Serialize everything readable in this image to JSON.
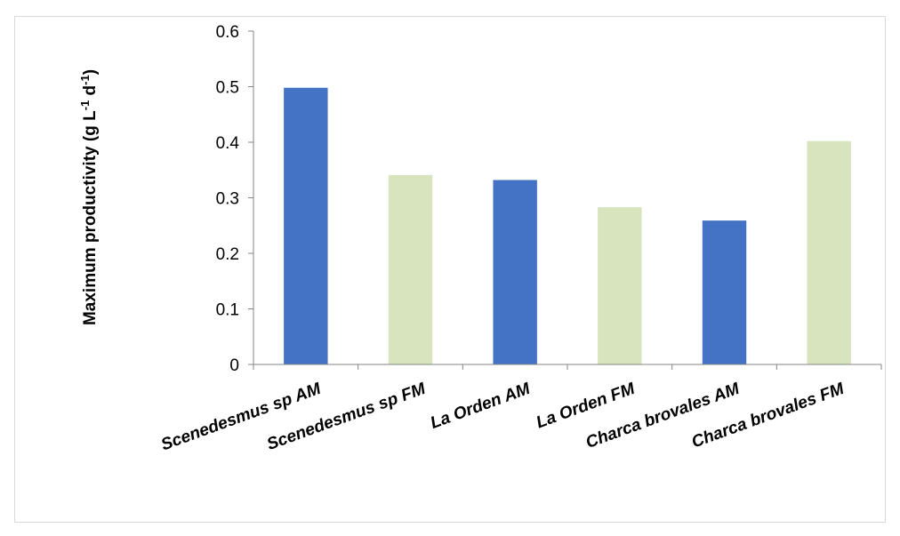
{
  "chart_data": {
    "type": "bar",
    "title": "",
    "xlabel": "",
    "ylabel": {
      "prefix": "Maximum productivity (g L",
      "sup1": "-1",
      "mid": " d",
      "sup2": "-1",
      "suffix": ")"
    },
    "ylim": [
      0,
      0.6
    ],
    "yticks": [
      "0",
      "0.1",
      "0.2",
      "0.3",
      "0.4",
      "0.5",
      "0.6"
    ],
    "grid": false,
    "legend": "none",
    "categories": [
      "Scenedesmus sp AM",
      "Scenedesmus sp FM",
      "La Orden AM",
      "La Orden FM",
      "Charca brovales AM",
      "Charca brovales FM"
    ],
    "values": [
      0.498,
      0.341,
      0.332,
      0.283,
      0.259,
      0.402
    ],
    "colors": {
      "AM": "#4472c4",
      "FM": "#d7e4bd",
      "axis": "#868686"
    },
    "bar_color_keys": [
      "AM",
      "FM",
      "AM",
      "FM",
      "AM",
      "FM"
    ]
  }
}
